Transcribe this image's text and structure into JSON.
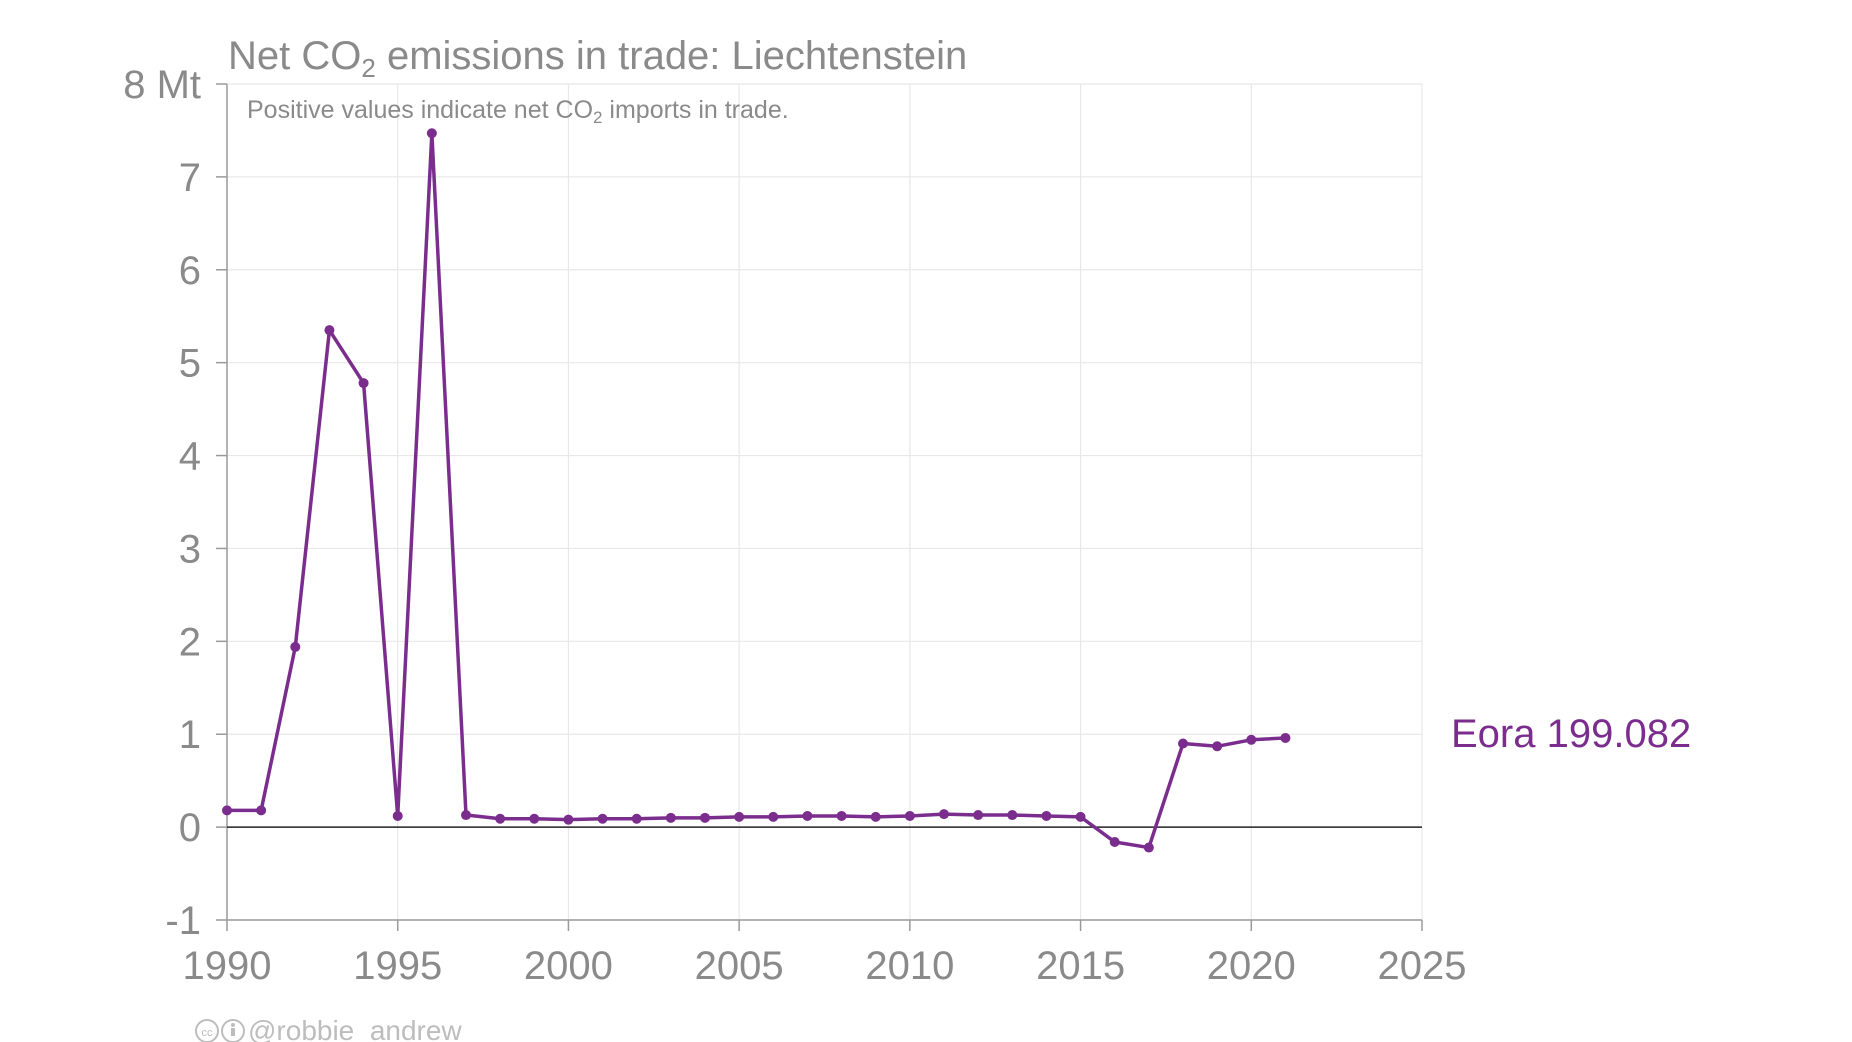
{
  "chart_data": {
    "type": "line",
    "title_parts": [
      "Net CO",
      "2",
      " emissions in trade: Liechtenstein"
    ],
    "subtitle_parts": [
      "Positive values indicate net CO",
      "2",
      " imports in trade."
    ],
    "xlabel": "",
    "ylabel": "",
    "xlim": [
      1990,
      2025
    ],
    "ylim": [
      -1,
      8
    ],
    "x_ticks": [
      "1990",
      "1995",
      "2000",
      "2005",
      "2010",
      "2015",
      "2020",
      "2025"
    ],
    "y_ticks": [
      "-1",
      "0",
      "1",
      "2",
      "3",
      "4",
      "5",
      "6",
      "7",
      "8 Mt"
    ],
    "y_unit": "Mt",
    "grid": true,
    "zero_line": true,
    "series": [
      {
        "name": "Eora 199.082",
        "color": "#7b2d8e",
        "x": [
          1990,
          1991,
          1992,
          1993,
          1994,
          1995,
          1996,
          1997,
          1998,
          1999,
          2000,
          2001,
          2002,
          2003,
          2004,
          2005,
          2006,
          2007,
          2008,
          2009,
          2010,
          2011,
          2012,
          2013,
          2014,
          2015,
          2016,
          2017,
          2018,
          2019,
          2020,
          2021
        ],
        "values": [
          0.18,
          0.18,
          1.94,
          5.35,
          4.78,
          0.12,
          7.47,
          0.13,
          0.09,
          0.09,
          0.08,
          0.09,
          0.09,
          0.1,
          0.1,
          0.11,
          0.11,
          0.12,
          0.12,
          0.11,
          0.12,
          0.14,
          0.13,
          0.13,
          0.12,
          0.11,
          -0.16,
          -0.22,
          0.9,
          0.87,
          0.94,
          0.96
        ]
      }
    ]
  },
  "credit": {
    "icons": [
      "cc-icon",
      "by-icon"
    ],
    "text": "@robbie_andrew"
  }
}
